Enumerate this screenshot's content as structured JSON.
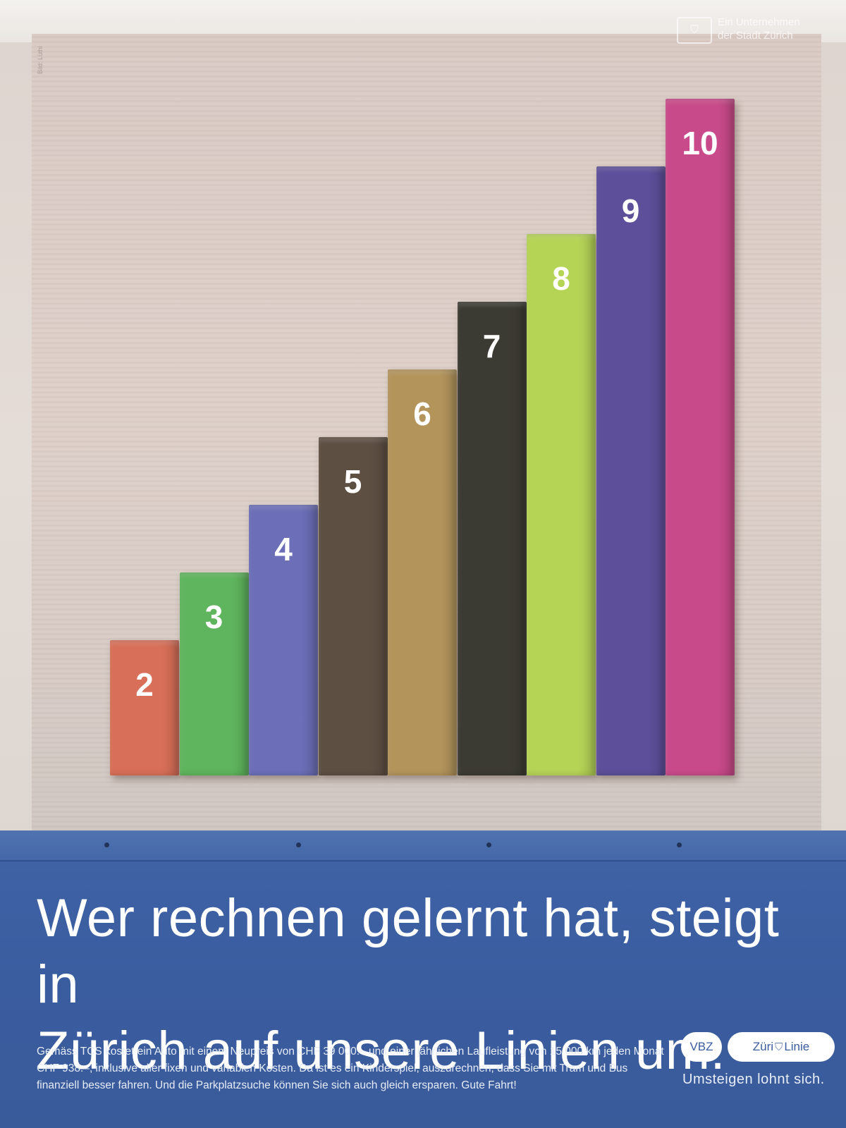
{
  "ad": {
    "credit": "Bild: Lüthi",
    "corner_logo": {
      "icon": "zurich-seal-icon",
      "line1": "Ein Unternehmen",
      "line2": "der Stadt Zürich"
    },
    "blocks": [
      {
        "label": "2",
        "value": 2,
        "color": "#d86f58"
      },
      {
        "label": "3",
        "value": 3,
        "color": "#5fb55d"
      },
      {
        "label": "4",
        "value": 4,
        "color": "#6c6fb8"
      },
      {
        "label": "5",
        "value": 5,
        "color": "#5e4f43"
      },
      {
        "label": "6",
        "value": 6,
        "color": "#b3955c"
      },
      {
        "label": "7",
        "value": 7,
        "color": "#3c3b33"
      },
      {
        "label": "8",
        "value": 8,
        "color": "#b5d456"
      },
      {
        "label": "9",
        "value": 9,
        "color": "#5d4f9a"
      },
      {
        "label": "10",
        "value": 10,
        "color": "#c94a8a"
      }
    ],
    "headline_line1": "Wer rechnen gelernt hat, steigt in",
    "headline_line2": "Zürich auf unsere Linien um.",
    "body_text": "Gemäss TCS kostet ein Auto mit einem Neupreis von CHF 39 000.– und einer jährlichen Laufleistung von 15 000 km jeden Monat CHF 938.–, inklusive aller fixen und variablen Kosten. Da ist es ein Kinderspiel, auszurechnen, dass Sie mit Tram und Bus finanziell besser fahren. Und die Parkplatzsuche können Sie sich auch gleich ersparen. Gute Fahrt!",
    "logo_vbz": "VBZ",
    "logo_zuri": "Züri",
    "logo_zuri_mark_icon": "zurich-seal-icon",
    "logo_linie": "Linie",
    "tagline": "Umsteigen lohnt sich."
  }
}
